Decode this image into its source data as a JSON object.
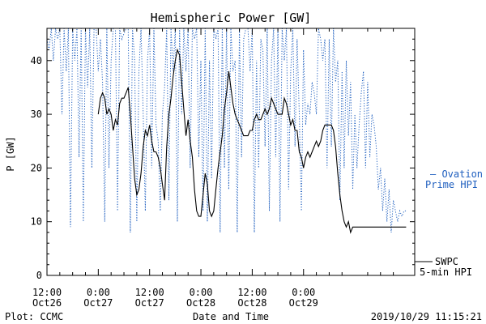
{
  "chart_data": {
    "type": "line",
    "title": "Hemispheric Power [GW]",
    "xlabel": "Date and Time",
    "ylabel": "P [GW]",
    "ylim": [
      0,
      46
    ],
    "xlim": [
      -12,
      74
    ],
    "yticks": [
      0,
      10,
      20,
      30,
      40
    ],
    "x_ticks": [
      {
        "hours": -12,
        "time": "12:00",
        "date": "Oct26"
      },
      {
        "hours": 0,
        "time": "0:00",
        "date": "Oct27"
      },
      {
        "hours": 12,
        "time": "12:00",
        "date": "Oct27"
      },
      {
        "hours": 24,
        "time": "0:00",
        "date": "Oct28"
      },
      {
        "hours": 36,
        "time": "12:00",
        "date": "Oct28"
      },
      {
        "hours": 48,
        "time": "0:00",
        "date": "Oct29"
      }
    ],
    "legend": {
      "ovation_line1": "— Ovation",
      "ovation_line2": "Prime HPI",
      "swpc_line1": "SWPC",
      "swpc_line2": "5-min HPI"
    },
    "footer": {
      "left": "Plot: CCMC",
      "right": "2019/10/29 11:15:21"
    },
    "colors": {
      "ovation": "#1f5fbf",
      "swpc": "#000000"
    },
    "series": [
      {
        "name": "Ovation Prime HPI",
        "style": "dotted",
        "x": [
          -12,
          -11.5,
          -11,
          -10.5,
          -10,
          -9.5,
          -9,
          -8.5,
          -8,
          -7.5,
          -7,
          -6.5,
          -6,
          -5.5,
          -5,
          -4.5,
          -4,
          -3.5,
          -3,
          -2.5,
          -2,
          -1.5,
          -1,
          -0.5,
          0,
          0.5,
          1,
          1.5,
          2,
          2.5,
          3,
          3.5,
          4,
          4.5,
          5,
          5.5,
          6,
          6.5,
          7,
          7.5,
          8,
          8.5,
          9,
          9.5,
          10,
          10.5,
          11,
          11.5,
          12,
          12.5,
          13,
          13.5,
          14,
          14.5,
          15,
          15.5,
          16,
          16.5,
          17,
          17.5,
          18,
          18.5,
          19,
          19.5,
          20,
          20.5,
          21,
          21.5,
          22,
          22.5,
          23,
          23.5,
          24,
          24.5,
          25,
          25.5,
          26,
          26.5,
          27,
          27.5,
          28,
          28.5,
          29,
          29.5,
          30,
          30.5,
          31,
          31.5,
          32,
          32.5,
          33,
          33.5,
          34,
          34.5,
          35,
          35.5,
          36,
          36.5,
          37,
          37.5,
          38,
          38.5,
          39,
          39.5,
          40,
          40.5,
          41,
          41.5,
          42,
          42.5,
          43,
          43.5,
          44,
          44.5,
          45,
          45.5,
          46,
          46.5,
          47,
          47.5,
          48,
          48.5,
          49,
          49.5,
          50,
          50.5,
          51,
          51.5,
          52,
          52.5,
          53,
          53.5,
          54,
          54.5,
          55,
          55.5,
          56,
          56.5,
          57,
          57.5,
          58,
          58.5,
          59,
          59.5,
          60,
          60.5,
          61,
          61.5,
          62,
          62.5,
          63,
          63.5,
          64,
          64.5,
          65,
          65.5,
          66,
          66.5,
          67,
          67.5,
          68,
          68.5,
          69,
          69.5,
          70,
          70.5,
          71,
          71.5,
          72
        ],
        "values": [
          44,
          42,
          46,
          40,
          46,
          44,
          46,
          30,
          46,
          38,
          46,
          9,
          46,
          40,
          46,
          22,
          46,
          10,
          46,
          35,
          46,
          20,
          46,
          46,
          38,
          44,
          36,
          10,
          46,
          20,
          40,
          46,
          46,
          12,
          46,
          44,
          45,
          46,
          46,
          8,
          46,
          40,
          10,
          38,
          46,
          30,
          12,
          40,
          46,
          20,
          46,
          28,
          25,
          12,
          30,
          35,
          46,
          14,
          46,
          38,
          46,
          10,
          46,
          30,
          46,
          38,
          46,
          20,
          46,
          44,
          46,
          22,
          40,
          12,
          46,
          10,
          40,
          18,
          46,
          44,
          46,
          8,
          46,
          20,
          46,
          16,
          46,
          38,
          40,
          8,
          46,
          22,
          44,
          46,
          46,
          38,
          46,
          8,
          40,
          20,
          44,
          42,
          24,
          46,
          12,
          40,
          46,
          22,
          46,
          10,
          46,
          40,
          46,
          16,
          38,
          46,
          24,
          44,
          30,
          12,
          42,
          28,
          32,
          30,
          36,
          34,
          30,
          46,
          44,
          40,
          44,
          20,
          44,
          24,
          46,
          36,
          40,
          14,
          38,
          20,
          40,
          26,
          36,
          16,
          30,
          20,
          28,
          34,
          38,
          20,
          36,
          22,
          30,
          28,
          24,
          16,
          20,
          12,
          18,
          10,
          16,
          8,
          14,
          12,
          10,
          12,
          11,
          12,
          12
        ]
      },
      {
        "name": "SWPC 5-min HPI",
        "style": "solid",
        "x": [
          0,
          0.5,
          1,
          1.5,
          2,
          2.5,
          3,
          3.5,
          4,
          4.5,
          5,
          5.5,
          6,
          6.5,
          7,
          7.5,
          8,
          8.5,
          9,
          9.5,
          10,
          10.5,
          11,
          11.5,
          12,
          12.5,
          13,
          13.5,
          14,
          14.5,
          15,
          15.5,
          16,
          16.5,
          17,
          17.5,
          18,
          18.5,
          19,
          19.5,
          20,
          20.5,
          21,
          21.5,
          22,
          22.5,
          23,
          23.5,
          24,
          24.5,
          25,
          25.5,
          26,
          26.5,
          27,
          27.5,
          28,
          28.5,
          29,
          29.5,
          30,
          30.5,
          31,
          31.5,
          32,
          32.5,
          33,
          33.5,
          34,
          34.5,
          35,
          35.5,
          36,
          36.5,
          37,
          37.5,
          38,
          38.5,
          39,
          39.5,
          40,
          40.5,
          41,
          41.5,
          42,
          42.5,
          43,
          43.5,
          44,
          44.5,
          45,
          45.5,
          46,
          46.5,
          47,
          47.5,
          48,
          48.5,
          49,
          49.5,
          50,
          50.5,
          51,
          51.5,
          52,
          52.5,
          53,
          53.5,
          54,
          54.5,
          55,
          55.5,
          56,
          56.5,
          57,
          57.5,
          58,
          58.5,
          59,
          59.5,
          60,
          60.5,
          61,
          61.5,
          62,
          62.5,
          63,
          63.5,
          64,
          64.5,
          65,
          65.5,
          66,
          66.5,
          67,
          67.5,
          68,
          68.5,
          69,
          69.5,
          70,
          70.5,
          71,
          71.5,
          72
        ],
        "values": [
          30,
          33,
          34,
          33,
          30,
          31,
          30,
          27,
          29,
          28,
          32,
          33,
          33,
          34,
          35,
          30,
          24,
          18,
          15,
          16,
          19,
          24,
          27,
          26,
          28,
          25,
          23,
          23,
          22,
          20,
          17,
          14,
          24,
          30,
          33,
          37,
          40,
          42,
          41,
          36,
          31,
          26,
          29,
          25,
          22,
          16,
          12,
          11,
          11,
          15,
          19,
          17,
          12,
          11,
          12,
          16,
          20,
          23,
          26,
          31,
          34,
          38,
          35,
          32,
          30,
          29,
          28,
          27,
          26,
          26,
          26,
          27,
          27,
          29,
          30,
          29,
          29,
          30,
          31,
          30,
          31,
          33,
          32,
          31,
          30,
          30,
          30,
          33,
          32,
          30,
          28,
          29,
          27,
          27,
          23,
          22,
          20,
          22,
          23,
          22,
          23,
          24,
          25,
          24,
          25,
          27,
          28,
          28,
          28,
          28,
          27,
          24,
          19,
          15,
          12,
          10,
          9,
          10,
          8,
          9,
          9,
          9,
          9,
          9,
          9,
          9,
          9,
          9,
          9,
          9,
          9,
          9,
          9,
          9,
          9,
          9,
          9,
          9,
          9,
          9,
          9,
          9,
          9,
          9,
          9
        ]
      }
    ]
  }
}
